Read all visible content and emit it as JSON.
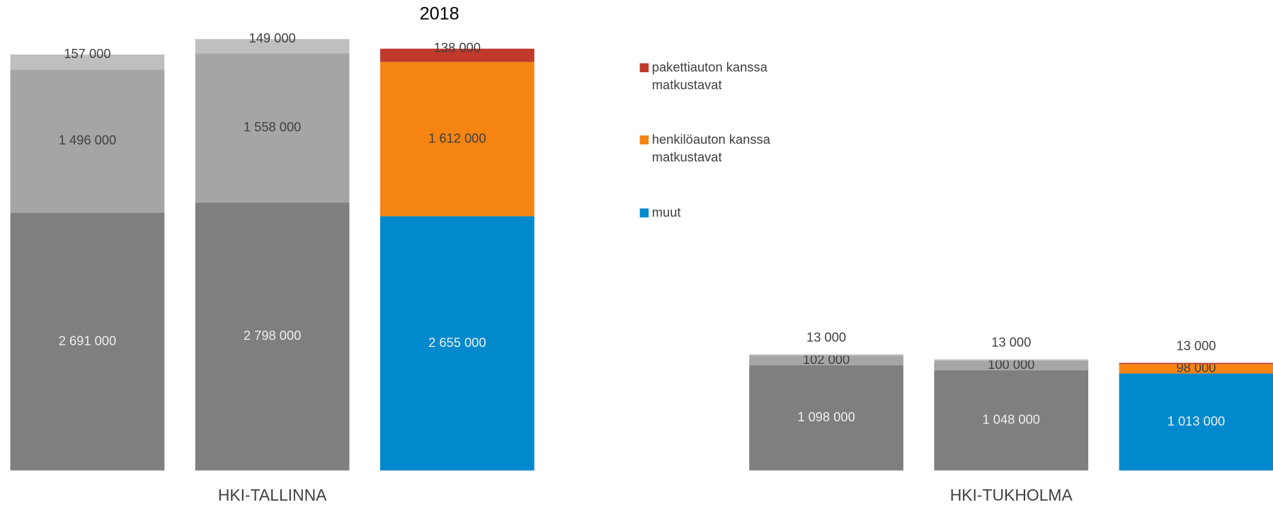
{
  "chart_data": {
    "type": "stacked_bar",
    "categories": [
      null,
      null,
      "2018",
      null,
      null,
      null
    ],
    "groups": [
      "HKI-TALLINNA",
      "HKI-TUKHOLMA"
    ],
    "series": [
      {
        "name": "muut",
        "color": "#0089cc",
        "bar_colors": [
          "#7f7f7f",
          "#7f7f7f",
          "#0089cc",
          "#7f7f7f",
          "#7f7f7f",
          "#0089cc"
        ],
        "values": [
          2691000,
          2798000,
          2655000,
          1098000,
          1048000,
          1013000
        ],
        "value_labels": [
          "2 691 000",
          "2 798 000",
          "2 655 000",
          "1 098 000",
          "1 048 000",
          "1 013 000"
        ]
      },
      {
        "name": "henkilöauton kanssa matkustavat",
        "color": "#f58413",
        "bar_colors": [
          "#a5a5a5",
          "#a5a5a5",
          "#f58413",
          "#a5a5a5",
          "#a5a5a5",
          "#f58413"
        ],
        "values": [
          1496000,
          1558000,
          1612000,
          102000,
          100000,
          98000
        ],
        "value_labels": [
          "1 496 000",
          "1 558 000",
          "1 612 000",
          "102 000",
          "100 000",
          "98 000"
        ]
      },
      {
        "name": "pakettiauton kanssa matkustavat",
        "color": "#c0392b",
        "bar_colors": [
          "#bfbfbf",
          "#bfbfbf",
          "#c0392b",
          "#bfbfbf",
          "#bfbfbf",
          "#c0392b"
        ],
        "values": [
          157000,
          149000,
          138000,
          13000,
          13000,
          13000
        ],
        "value_labels": [
          "157 000",
          "149 000",
          "138 000",
          "13 000",
          "13 000",
          "13 000"
        ]
      }
    ],
    "ylim": [
      0,
      4600000
    ]
  }
}
